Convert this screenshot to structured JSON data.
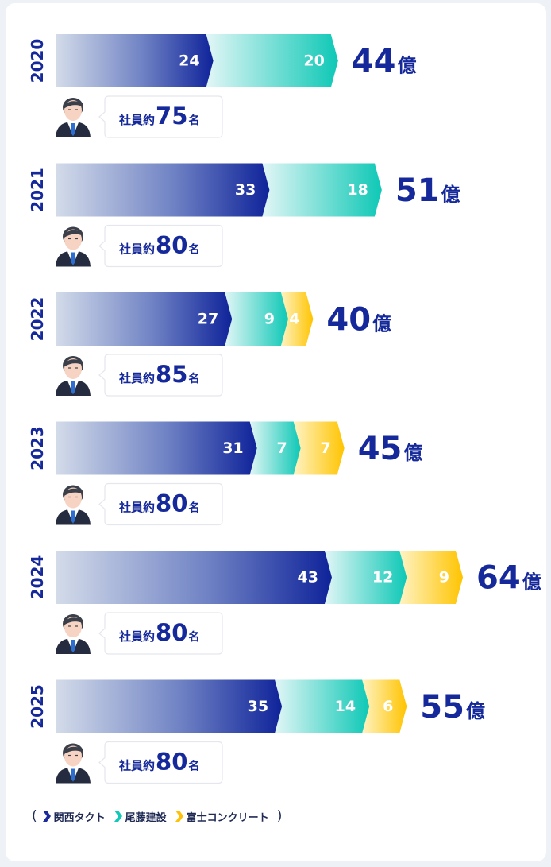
{
  "colors": {
    "kanto_takuto": "#1b2b9c",
    "bito_kensetsu": "#11c9b8",
    "fuji_concrete": "#ffc107",
    "text_navy": "#16299a"
  },
  "legend": {
    "open_paren": "(",
    "close_paren": ")",
    "items": [
      "関西タクト",
      "尾藤建設",
      "富士コンクリート"
    ]
  },
  "chart_data": {
    "type": "bar",
    "orientation": "horizontal-stacked",
    "categories": [
      "2020",
      "2021",
      "2022",
      "2023",
      "2024",
      "2025"
    ],
    "series": [
      {
        "name": "関西タクト",
        "values": [
          24,
          33,
          27,
          31,
          43,
          35
        ]
      },
      {
        "name": "尾藤建設",
        "values": [
          20,
          18,
          9,
          7,
          12,
          14
        ]
      },
      {
        "name": "富士コンクリート",
        "values": [
          null,
          null,
          4,
          7,
          9,
          6
        ]
      }
    ],
    "totals": [
      "44",
      "51",
      "40",
      "45",
      "64",
      "55"
    ],
    "total_unit": "億",
    "employees": [
      "75",
      "80",
      "85",
      "80",
      "80",
      "80"
    ],
    "employee_prefix": "社員約",
    "employee_unit": "名"
  }
}
